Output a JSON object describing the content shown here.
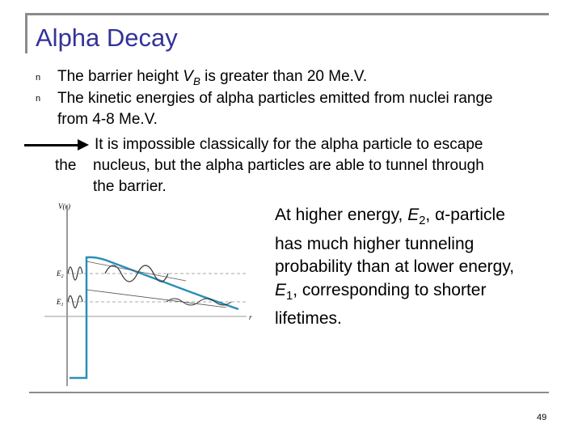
{
  "slide": {
    "title": "Alpha Decay",
    "bullet_marker": "n",
    "bullets": [
      {
        "pre": "The barrier height ",
        "var": "V",
        "sub": "B",
        "post": " is greater than 20 Me.V."
      },
      {
        "line1": "The kinetic energies of alpha particles emitted from nuclei range",
        "line2": "from 4-8 Me.V."
      }
    ],
    "arrow_text": {
      "line1": "It is impossible classically for the alpha particle to escape",
      "line2_pre": "the",
      "line2": "nucleus, but the alpha particles are able to tunnel through",
      "line3": "the barrier."
    },
    "side_text": {
      "l1_pre": "At higher energy, ",
      "l1_var": "E",
      "l1_sub": "2",
      "l1_post": ", α-particle",
      "l2": "has much higher tunneling",
      "l3": "probability than at lower energy,",
      "l4_var": "E",
      "l4_sub": "1",
      "l4_post": ", corresponding to shorter",
      "l5": "lifetimes."
    },
    "page_number": "49",
    "figure": {
      "y_axis_label": "V(r)",
      "x_axis_label": "r",
      "level_high": "E",
      "level_high_sub": "2",
      "level_low": "E",
      "level_low_sub": "1"
    },
    "colors": {
      "title": "#333399",
      "frame": "#8c8c8c",
      "wave": "#2a8fb8",
      "potential": "#2a8fb8"
    }
  }
}
